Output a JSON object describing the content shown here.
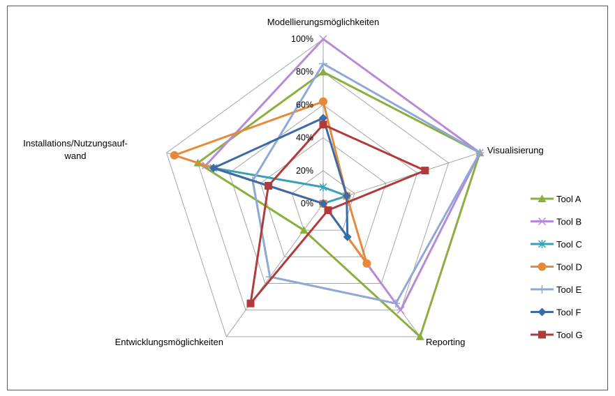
{
  "chart_data": {
    "type": "radar",
    "axes": [
      "Modellierungsmöglichkeiten",
      "Visualisierung",
      "Reporting",
      "Entwicklungsmöglichkeiten",
      "Installations/Nutzungsauf-wand"
    ],
    "axis_label_lines": [
      [
        "Modellierungsmöglichkeiten"
      ],
      [
        "Visualisierung"
      ],
      [
        "Reporting"
      ],
      [
        "Entwicklungsmöglichkeiten"
      ],
      [
        "Installations/Nutzungsauf-",
        "wand"
      ]
    ],
    "tick_labels": [
      "0%",
      "20%",
      "40%",
      "60%",
      "80%",
      "100%"
    ],
    "ticks": [
      0,
      20,
      40,
      60,
      80,
      100
    ],
    "range": [
      0,
      100
    ],
    "legend_position": "right",
    "series": [
      {
        "name": "Tool A",
        "color": "#8BAF3F",
        "marker": "triangle",
        "values": [
          80,
          100,
          100,
          20,
          80
        ]
      },
      {
        "name": "Tool B",
        "color": "#B68AD6",
        "marker": "x",
        "values": [
          100,
          100,
          80,
          0,
          75
        ]
      },
      {
        "name": "Tool C",
        "color": "#3A9FB5",
        "marker": "star",
        "values": [
          10,
          15,
          0,
          0,
          70
        ]
      },
      {
        "name": "Tool D",
        "color": "#E8883A",
        "marker": "circle",
        "values": [
          62,
          15,
          45,
          0,
          95
        ]
      },
      {
        "name": "Tool E",
        "color": "#8FA8D6",
        "marker": "plus",
        "values": [
          85,
          100,
          75,
          55,
          45
        ]
      },
      {
        "name": "Tool F",
        "color": "#3B6AA8",
        "marker": "diamond",
        "values": [
          52,
          15,
          25,
          0,
          70
        ]
      },
      {
        "name": "Tool G",
        "color": "#B33A3A",
        "marker": "square",
        "values": [
          48,
          65,
          5,
          75,
          35
        ]
      }
    ]
  }
}
